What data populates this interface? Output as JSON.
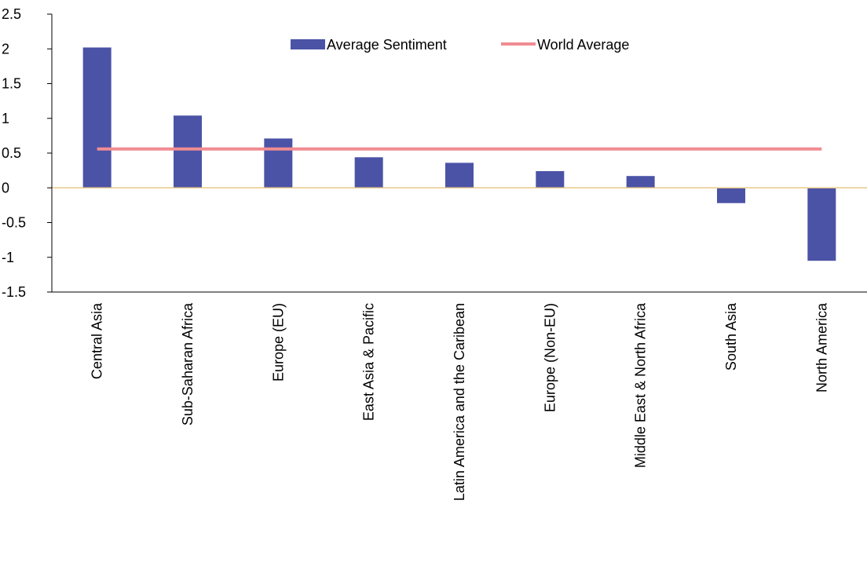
{
  "chart_data": {
    "type": "bar",
    "title": "",
    "xlabel": "",
    "ylabel": "",
    "ylim": [
      -1.5,
      2.5
    ],
    "yticks": [
      2.5,
      2,
      1.5,
      1,
      0.5,
      0,
      -0.5,
      -1,
      -1.5
    ],
    "categories": [
      "Central Asia",
      "Sub-Saharan Africa",
      "Europe (EU)",
      "East Asia & Pacific",
      "Latin America and the Caribean",
      "Europe (Non-EU)",
      "Middle East & North Africa",
      "South Asia",
      "North America"
    ],
    "series": [
      {
        "name": "Average Sentiment",
        "type": "bar",
        "color": "#4b53a6",
        "values": [
          2.02,
          1.04,
          0.71,
          0.44,
          0.36,
          0.24,
          0.17,
          -0.22,
          -1.05
        ]
      },
      {
        "name": "World Average",
        "type": "line",
        "color": "#f08c92",
        "values": [
          0.56,
          0.56,
          0.56,
          0.56,
          0.56,
          0.56,
          0.56,
          0.56,
          0.56
        ]
      }
    ],
    "zero_line_color": "#e8c98a",
    "legend_position": "top-center",
    "grid": false
  }
}
